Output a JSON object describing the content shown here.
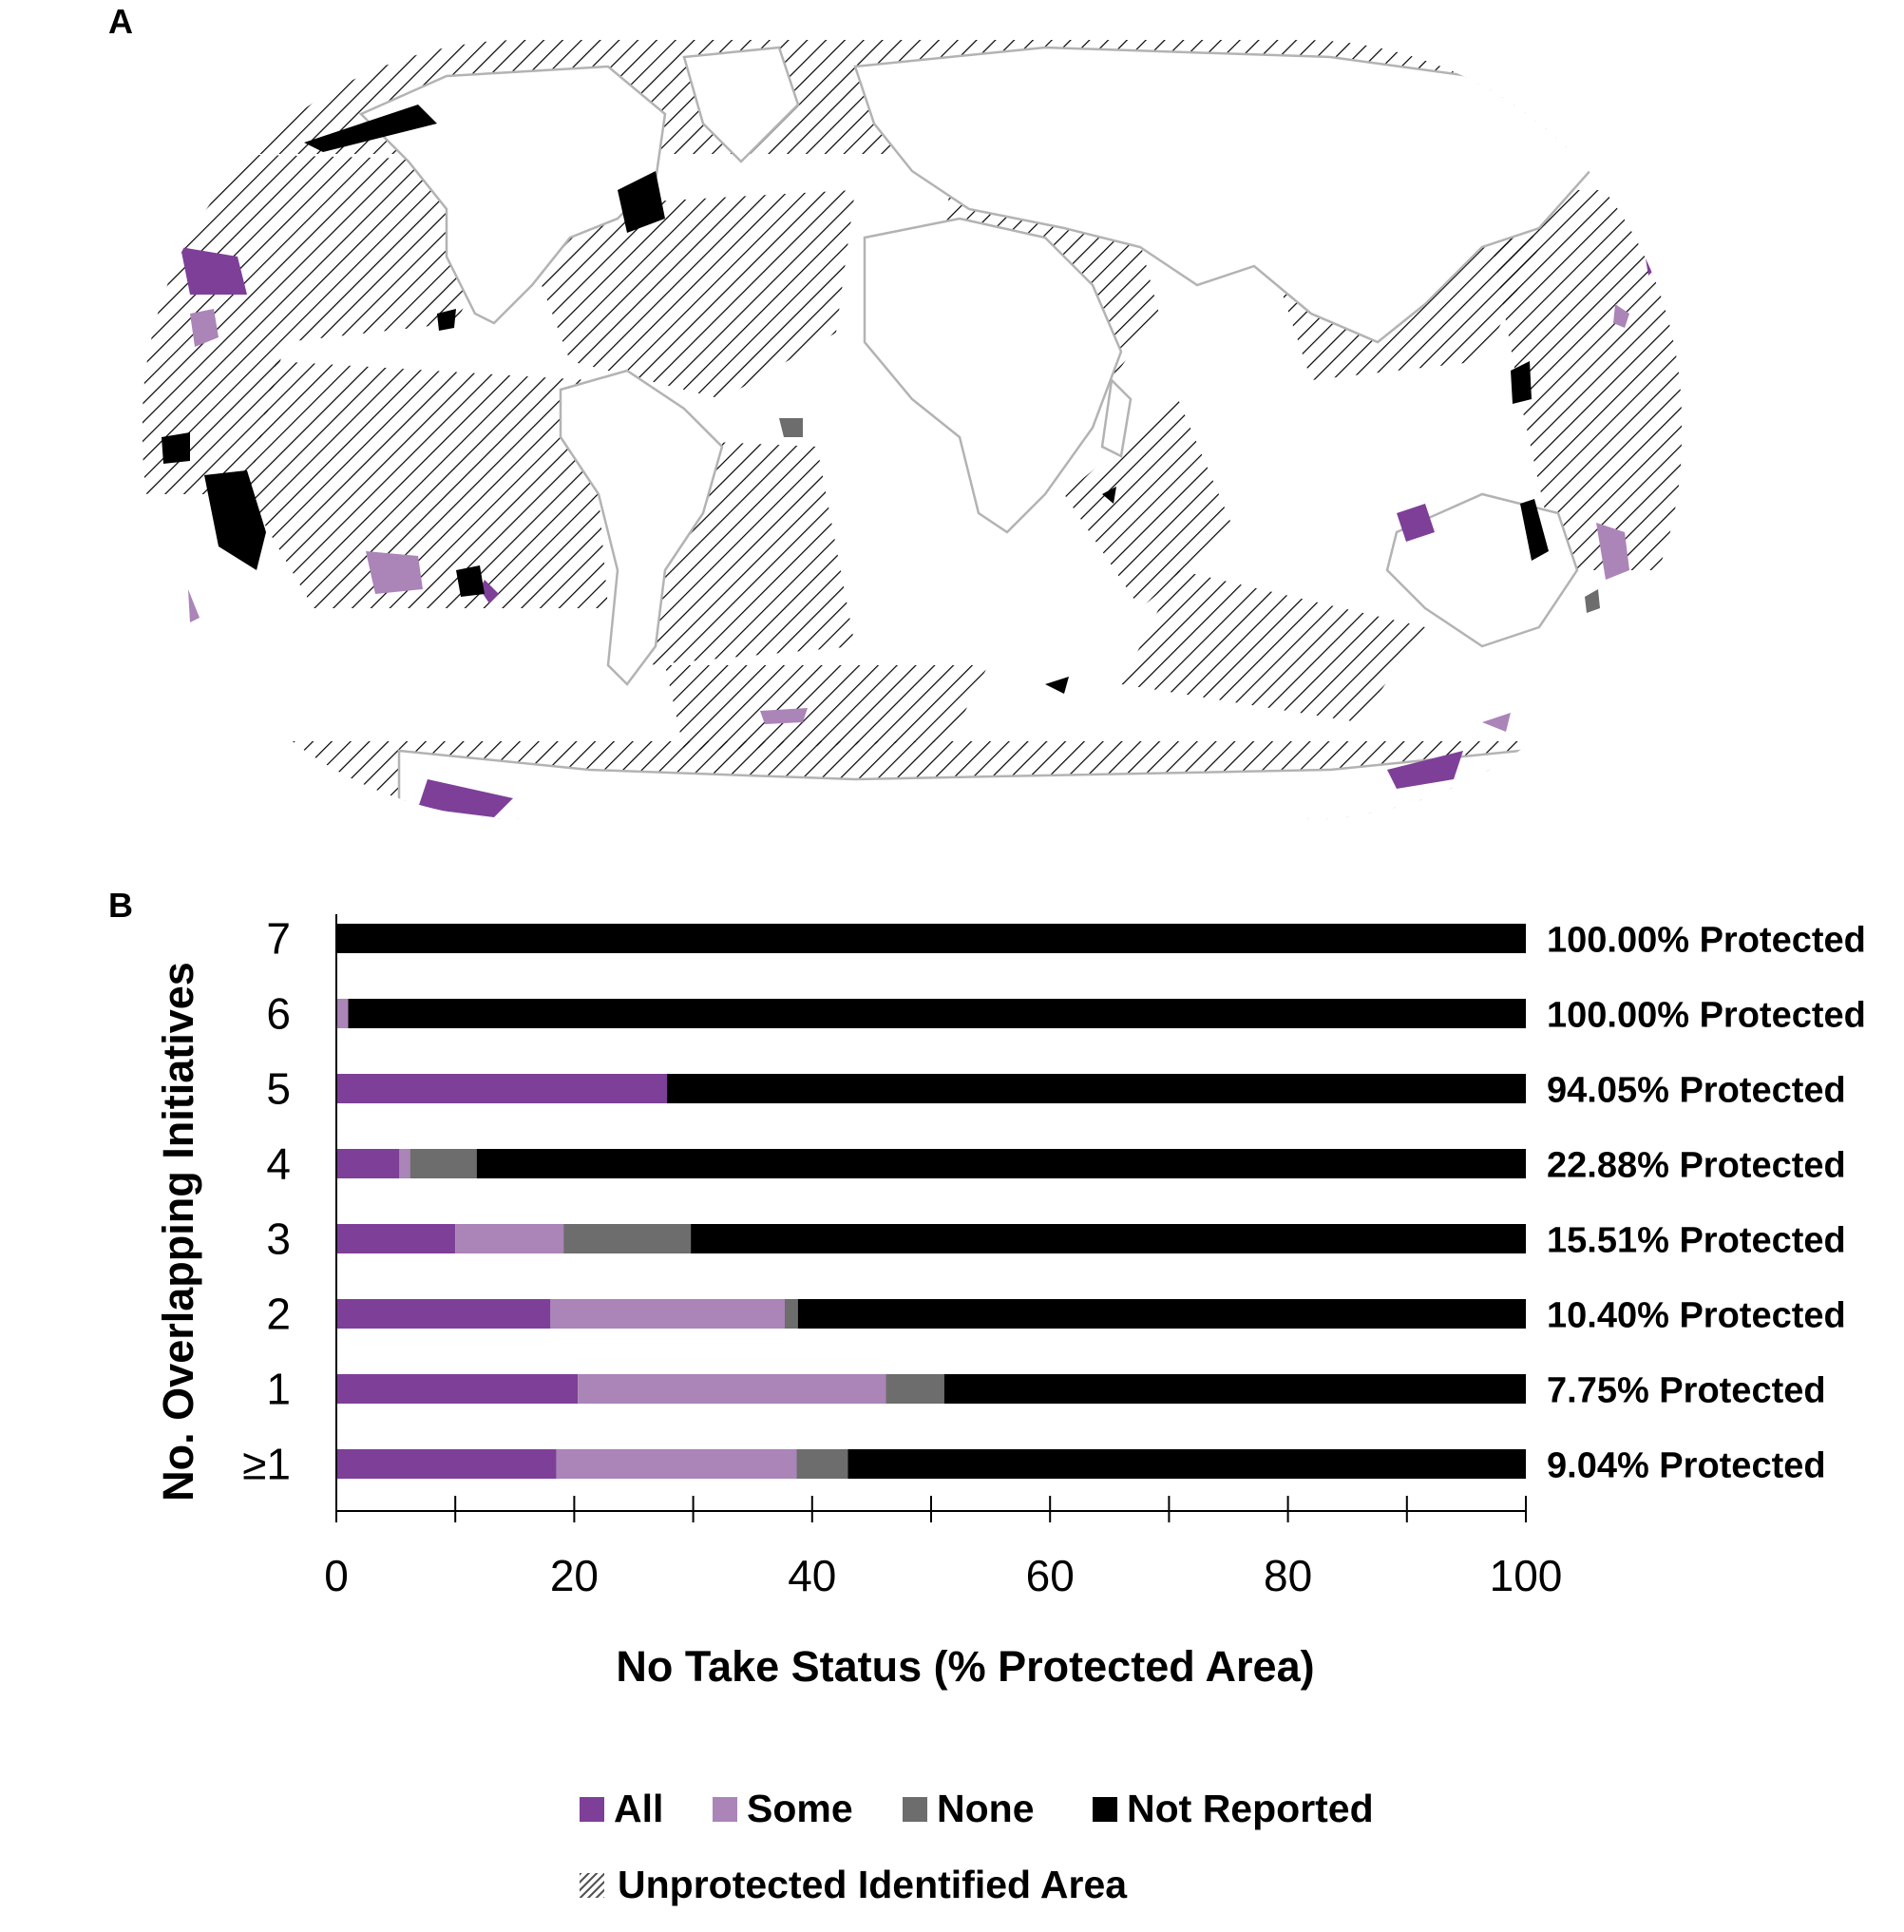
{
  "panels": {
    "a": "A",
    "b": "B"
  },
  "map": {
    "colors": {
      "all": "#7e3f98",
      "some": "#ab84b8",
      "none": "#6d6d6d",
      "not_reported": "#000000",
      "land_border": "#b3b3b3",
      "hatch": "#000000"
    }
  },
  "chart_data": {
    "type": "bar",
    "stacked": true,
    "orientation": "horizontal",
    "xlabel": "No Take Status (% Protected Area)",
    "ylabel": "No. Overlapping Initiatives",
    "xlim": [
      0,
      100
    ],
    "xticks": [
      "0",
      "20",
      "40",
      "60",
      "80",
      "100"
    ],
    "categories": [
      "7",
      "6",
      "5",
      "4",
      "3",
      "2",
      "1",
      "≥1"
    ],
    "series": [
      {
        "name": "All",
        "color": "#7e3f98",
        "values": [
          0,
          0,
          27.8,
          5.3,
          10.0,
          18.0,
          20.3,
          18.5
        ]
      },
      {
        "name": "Some",
        "color": "#ab84b8",
        "values": [
          0,
          1.0,
          0,
          0.9,
          9.1,
          19.7,
          25.9,
          20.2
        ]
      },
      {
        "name": "None",
        "color": "#6d6d6d",
        "values": [
          0,
          0,
          0,
          5.6,
          10.7,
          1.1,
          4.9,
          4.3
        ]
      },
      {
        "name": "Not Reported",
        "color": "#000000",
        "values": [
          100,
          99.0,
          72.2,
          88.2,
          70.2,
          61.2,
          48.9,
          57.0
        ]
      }
    ],
    "annotations": [
      "100.00% Protected",
      "100.00% Protected",
      "94.05% Protected",
      "22.88% Protected",
      "15.51% Protected",
      "10.40% Protected",
      "7.75% Protected",
      "9.04% Protected"
    ]
  },
  "legend": {
    "all": "All",
    "some": "Some",
    "none": "None",
    "not_reported": "Not Reported",
    "unprotected": "Unprotected Identified Area"
  }
}
